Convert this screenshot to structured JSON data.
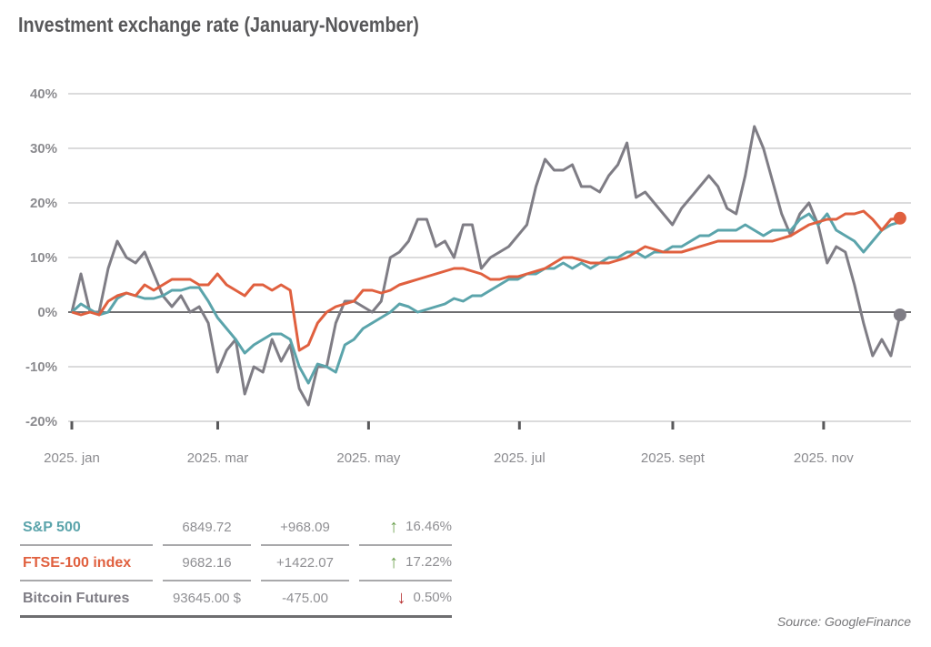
{
  "title": "Investment exchange rate (January-November)",
  "source": "Source: GoogleFinance",
  "colors": {
    "sp500": "#5ba4ab",
    "ftse": "#e0603f",
    "bitcoin": "#7f7d85",
    "up": "#6a9f4c",
    "down": "#b83232",
    "grid": "#cfcfd1",
    "zero": "#6e6e70"
  },
  "table": [
    {
      "name": "S&P 500",
      "value": "6849.72",
      "change": "+968.09",
      "direction": "up",
      "arrow": "↑",
      "percent": "16.46%",
      "color": "#5ba4ab"
    },
    {
      "name": "FTSE-100 index",
      "value": "9682.16",
      "change": "+1422.07",
      "direction": "up",
      "arrow": "↑",
      "percent": "17.22%",
      "color": "#e0603f"
    },
    {
      "name": "Bitcoin Futures",
      "value": "93645.00 $",
      "change": "-475.00",
      "direction": "down",
      "arrow": "↓",
      "percent": "0.50%",
      "color": "#7f7d85"
    }
  ],
  "chart_data": {
    "type": "line",
    "title": "Investment exchange rate (January-November)",
    "xlabel": "",
    "ylabel": "",
    "ylim": [
      -20,
      40
    ],
    "yticks": [
      40,
      30,
      20,
      10,
      0,
      -10,
      -20
    ],
    "ytick_labels": [
      "40%",
      "30%",
      "20%",
      "10%",
      "0%",
      "-10%",
      "-20%"
    ],
    "x_unit": "day of year 2025 (0 = Jan 1)",
    "xlim": [
      0,
      340
    ],
    "xticks": [
      0,
      59,
      120,
      181,
      243,
      304
    ],
    "xtick_labels": [
      "2025. jan",
      "2025. mar",
      "2025. may",
      "2025. jul",
      "2025. sept",
      "2025. nov"
    ],
    "x_start": 0,
    "x_step": 3.68,
    "grid": true,
    "series": [
      {
        "name": "Bitcoin Futures",
        "color": "#7f7d85",
        "end_marker": true,
        "values": [
          0,
          7,
          0,
          0,
          8,
          13,
          10,
          9,
          11,
          7,
          3,
          1,
          3,
          0,
          1,
          -2,
          -11,
          -7,
          -5,
          -15,
          -10,
          -11,
          -5,
          -9,
          -6,
          -14,
          -17,
          -10,
          -10,
          -2,
          2,
          2,
          1,
          0,
          2,
          10,
          11,
          13,
          17,
          17,
          12,
          13,
          10,
          16,
          16,
          8,
          10,
          11,
          12,
          14,
          16,
          23,
          28,
          26,
          26,
          27,
          23,
          23,
          22,
          25,
          27,
          31,
          21,
          22,
          20,
          18,
          16,
          19,
          21,
          23,
          25,
          23,
          19,
          18,
          25,
          34,
          30,
          24,
          18,
          14,
          18,
          20,
          16,
          9,
          12,
          11,
          5,
          -2,
          -8,
          -5,
          -8,
          -0.5
        ]
      },
      {
        "name": "S&P 500",
        "color": "#5ba4ab",
        "end_marker": false,
        "values": [
          0,
          1.5,
          0.5,
          -0.5,
          0,
          2.5,
          3.5,
          3,
          2.5,
          2.5,
          3,
          4,
          4,
          4.5,
          4.5,
          2,
          -1,
          -3,
          -5,
          -7.5,
          -6,
          -5,
          -4,
          -4,
          -5,
          -10,
          -13,
          -9.5,
          -10,
          -11,
          -6,
          -5,
          -3,
          -2,
          -1,
          0,
          1.5,
          1,
          0,
          0.5,
          1,
          1.5,
          2.5,
          2,
          3,
          3,
          4,
          5,
          6,
          6,
          7,
          7,
          8,
          8,
          9,
          8,
          9,
          8,
          9,
          10,
          10,
          11,
          11,
          10,
          11,
          11,
          12,
          12,
          13,
          14,
          14,
          15,
          15,
          15,
          16,
          15,
          14,
          15,
          15,
          15,
          17,
          18,
          16,
          18,
          15,
          14,
          13,
          11,
          13,
          15,
          16,
          16.5
        ]
      },
      {
        "name": "FTSE-100 index",
        "color": "#e0603f",
        "end_marker": true,
        "values": [
          0,
          -0.5,
          0,
          -0.5,
          2,
          3,
          3.5,
          3,
          5,
          4,
          5,
          6,
          6,
          6,
          5,
          5,
          7,
          5,
          4,
          3,
          5,
          5,
          4,
          5,
          4,
          -7,
          -6,
          -2,
          0,
          1,
          1.5,
          2,
          4,
          4,
          3.5,
          4,
          5,
          5.5,
          6,
          6.5,
          7,
          7.5,
          8,
          8,
          7.5,
          7,
          6,
          6,
          6.5,
          6.5,
          7,
          7.5,
          8,
          9,
          10,
          10,
          9.5,
          9,
          9,
          9,
          9.5,
          10,
          11,
          12,
          11.5,
          11,
          11,
          11,
          11.5,
          12,
          12.5,
          13,
          13,
          13,
          13,
          13,
          13,
          13,
          13.5,
          14,
          15,
          16,
          16.5,
          17,
          17,
          18,
          18,
          18.5,
          17,
          15,
          17,
          17.2
        ]
      }
    ]
  }
}
